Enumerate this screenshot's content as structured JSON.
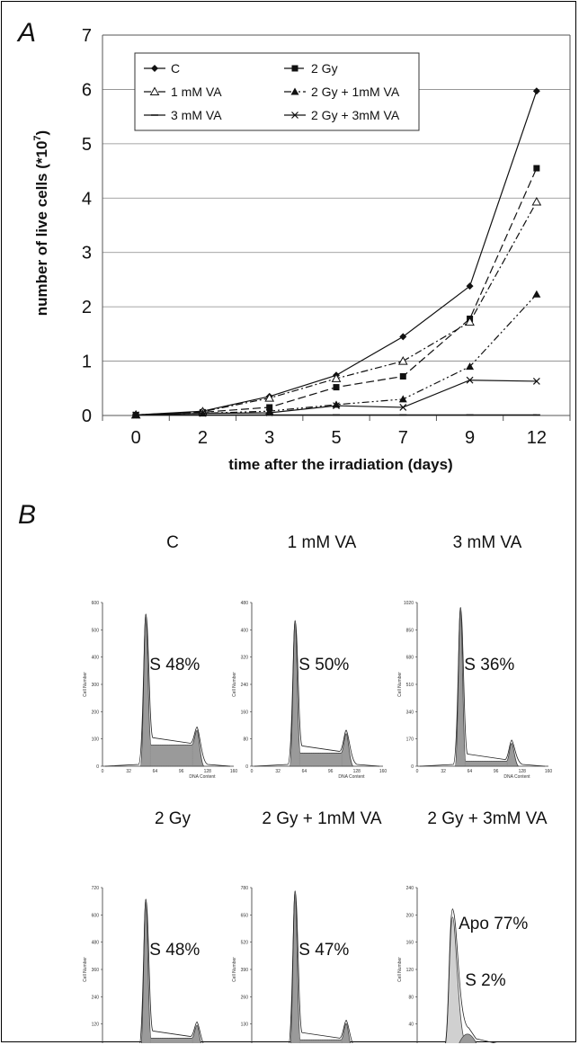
{
  "panel_a_label": "A",
  "panel_b_label": "B",
  "chart_data": [
    {
      "type": "line",
      "categories": [
        "0",
        "2",
        "3",
        "5",
        "7",
        "9",
        "12"
      ],
      "ylim": [
        0,
        7
      ],
      "yticks": [
        "0",
        "1",
        "2",
        "3",
        "4",
        "5",
        "6",
        "7"
      ],
      "ylabel": "number of live cells (*10",
      "ylabel_sup": "7",
      "ylabel_end": ")",
      "xlabel": "time after the irradiation (days)",
      "grid": true,
      "legend_position": "top-left",
      "series": [
        {
          "name": "C",
          "marker": "diamond",
          "dash": "",
          "values": [
            0.01,
            0.08,
            0.35,
            0.74,
            1.45,
            2.38,
            5.97
          ]
        },
        {
          "name": "2 Gy",
          "marker": "square",
          "dash": "9 4",
          "values": [
            0.01,
            0.06,
            0.15,
            0.52,
            0.72,
            1.78,
            4.55
          ]
        },
        {
          "name": "1 mM VA",
          "marker": "triangle-open",
          "dash": "8 3 2 3",
          "values": [
            0.01,
            0.07,
            0.32,
            0.68,
            1.0,
            1.72,
            3.93
          ]
        },
        {
          "name": "2 Gy + 1mM VA",
          "marker": "triangle",
          "dash": "8 3 2 3 2 3",
          "values": [
            0.01,
            0.04,
            0.08,
            0.2,
            0.3,
            0.9,
            2.23
          ]
        },
        {
          "name": "3 mM VA",
          "marker": "line",
          "dash": "",
          "values": [
            0.01,
            0.01,
            0.01,
            0.01,
            0.01,
            0.01,
            0.01
          ]
        },
        {
          "name": "2 Gy + 3mM VA",
          "marker": "x",
          "dash": "",
          "values": [
            0.01,
            0.04,
            0.05,
            0.18,
            0.15,
            0.65,
            0.63
          ]
        }
      ]
    },
    {
      "type": "area",
      "histograms": [
        {
          "title": "C",
          "label": "S 48%",
          "label2": "",
          "ymax_label": "600",
          "yticks": [
            "0",
            "100",
            "200",
            "300",
            "400",
            "500",
            "600"
          ],
          "peak1": 0.93,
          "peak2": 0.22,
          "sphase": 0.13,
          "apo": 0
        },
        {
          "title": "1 mM VA",
          "label": "S 50%",
          "label2": "",
          "ymax_label": "480",
          "yticks": [
            "0",
            "80",
            "160",
            "240",
            "320",
            "400",
            "480"
          ],
          "peak1": 0.89,
          "peak2": 0.2,
          "sphase": 0.08,
          "apo": 0
        },
        {
          "title": "3 mM VA",
          "label": "S 36%",
          "label2": "",
          "ymax_label": "1020",
          "yticks": [
            "0",
            "170",
            "340",
            "510",
            "680",
            "850",
            "1020"
          ],
          "peak1": 0.97,
          "peak2": 0.14,
          "sphase": 0.03,
          "apo": 0
        },
        {
          "title": "2 Gy",
          "label": "S 48%",
          "label2": "",
          "ymax_label": "720",
          "yticks": [
            "0",
            "120",
            "240",
            "360",
            "480",
            "600",
            "720"
          ],
          "peak1": 0.93,
          "peak2": 0.16,
          "sphase": 0.08,
          "apo": 0
        },
        {
          "title": "2 Gy + 1mM VA",
          "label": "S 47%",
          "label2": "",
          "ymax_label": "780",
          "yticks": [
            "0",
            "130",
            "260",
            "390",
            "520",
            "650",
            "780"
          ],
          "peak1": 0.98,
          "peak2": 0.17,
          "sphase": 0.07,
          "apo": 0
        },
        {
          "title": "2 Gy + 3mM VA",
          "label": "Apo 77%",
          "label2": "S 2%",
          "ymax_label": "240",
          "yticks": [
            "0",
            "40",
            "80",
            "120",
            "160",
            "200",
            "240"
          ],
          "peak1": 0.16,
          "peak2": 0.05,
          "sphase": 0.01,
          "apo": 0.82
        }
      ],
      "x_ticks": [
        "0",
        "32",
        "64",
        "96",
        "128",
        "160"
      ],
      "x_axis_label": "DNA Content",
      "y_axis_label": "Cell Number"
    }
  ],
  "colors": {
    "line": "#111111",
    "grid": "#888888",
    "fill": "#9a9a9a",
    "hatch": "#6f6f6f",
    "apo": "#d0d0d0"
  }
}
